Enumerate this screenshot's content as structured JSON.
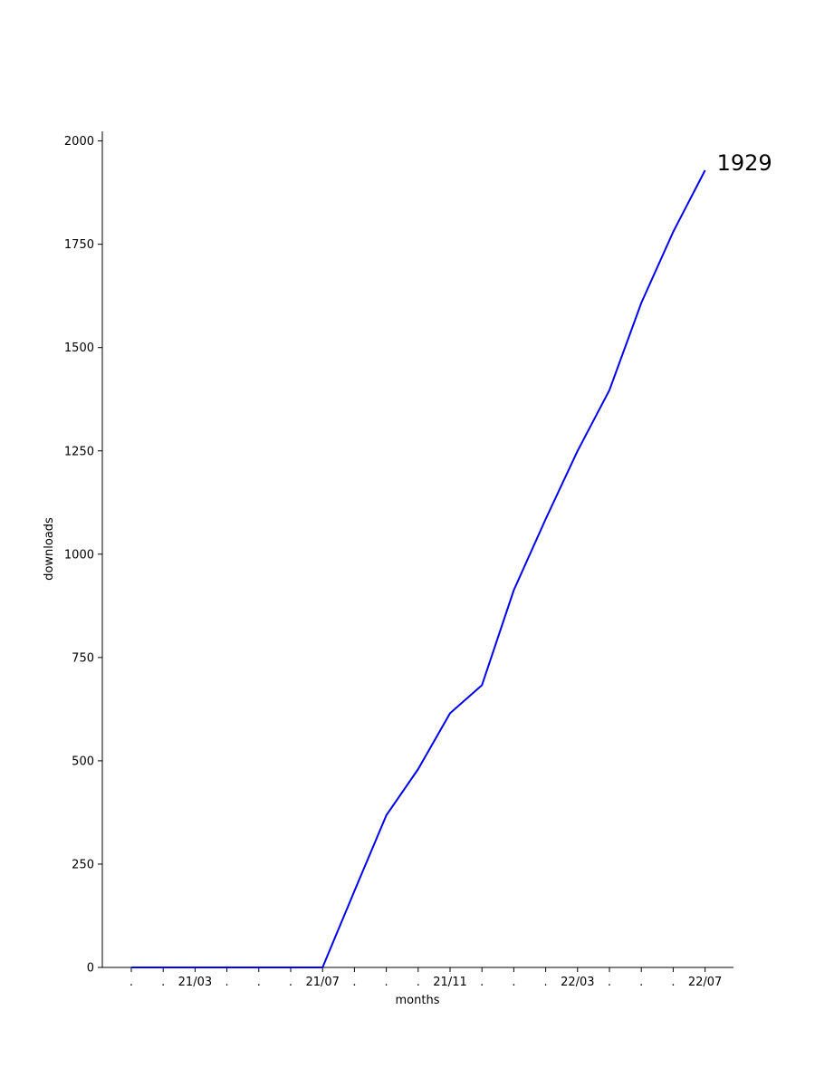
{
  "chart_data": {
    "type": "line",
    "xlabel": "months",
    "ylabel": "downloads",
    "ylim": [
      0,
      2000
    ],
    "yticks": [
      0,
      250,
      500,
      750,
      1000,
      1250,
      1500,
      1750,
      2000
    ],
    "categories": [
      ".",
      ".",
      "21/03",
      ".",
      ".",
      ".",
      "21/07",
      ".",
      ".",
      ".",
      "21/11",
      ".",
      ".",
      ".",
      "22/03",
      ".",
      ".",
      ".",
      "22/07"
    ],
    "series": [
      {
        "values": [
          0,
          0,
          0,
          0,
          0,
          0,
          0,
          185,
          368,
          480,
          615,
          683,
          913,
          1085,
          1250,
          1397,
          1608,
          1780,
          1929
        ],
        "color": "#0000ee"
      }
    ],
    "end_label": "1929",
    "grid": false,
    "legend": "none"
  }
}
